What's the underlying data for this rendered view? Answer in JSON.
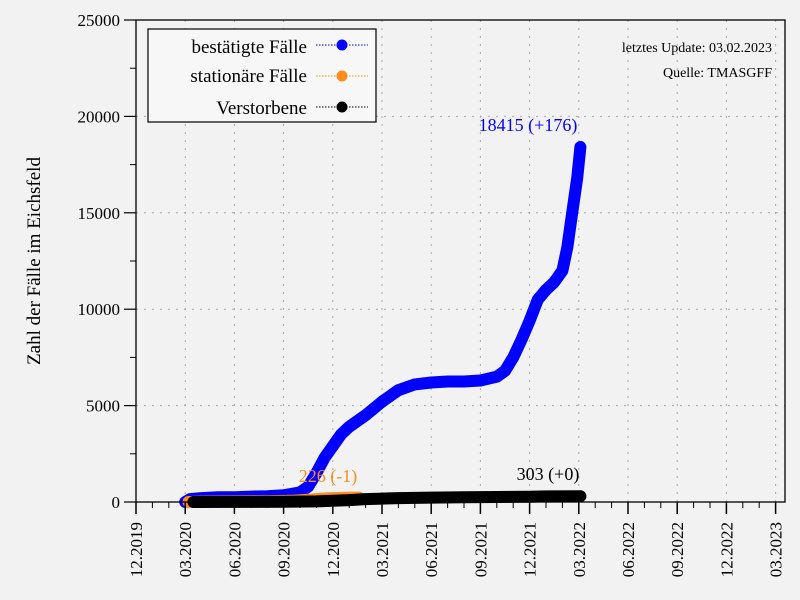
{
  "chart_data": {
    "type": "line",
    "title": "",
    "xlabel": "",
    "ylabel": "Zahl der Fälle im Eichsfeld",
    "ylim": [
      0,
      25000
    ],
    "yticks": [
      "0",
      "5000",
      "10000",
      "15000",
      "20000",
      "25000"
    ],
    "xticks": [
      "12.2019",
      "03.2020",
      "06.2020",
      "09.2020",
      "12.2020",
      "03.2021",
      "06.2021",
      "09.2021",
      "12.2021",
      "03.2022",
      "06.2022",
      "09.2022",
      "12.2022",
      "03.2023"
    ],
    "grid": true,
    "legend_position": "upper left",
    "notes": [
      "letztes Update: 03.02.2023",
      "Quelle: TMASGFF"
    ],
    "x_unit": "months since 12.2019",
    "series": [
      {
        "name": "bestätigte Fälle",
        "color": "#0000ff",
        "end_label": "18415 (+176)",
        "points": [
          [
            3.0,
            0
          ],
          [
            3.3,
            150
          ],
          [
            4,
            200
          ],
          [
            5,
            250
          ],
          [
            6,
            250
          ],
          [
            7,
            280
          ],
          [
            8,
            300
          ],
          [
            9,
            350
          ],
          [
            10,
            500
          ],
          [
            10.5,
            800
          ],
          [
            11,
            1500
          ],
          [
            11.5,
            2300
          ],
          [
            12,
            2900
          ],
          [
            12.5,
            3500
          ],
          [
            13,
            3900
          ],
          [
            14,
            4500
          ],
          [
            15,
            5200
          ],
          [
            16,
            5800
          ],
          [
            17,
            6100
          ],
          [
            18,
            6200
          ],
          [
            19,
            6250
          ],
          [
            20,
            6250
          ],
          [
            21,
            6300
          ],
          [
            22,
            6500
          ],
          [
            22.5,
            6800
          ],
          [
            23,
            7500
          ],
          [
            23.5,
            8400
          ],
          [
            24,
            9400
          ],
          [
            24.5,
            10500
          ],
          [
            25,
            11000
          ],
          [
            25.5,
            11400
          ],
          [
            26,
            12000
          ],
          [
            26.3,
            13200
          ],
          [
            26.6,
            15000
          ],
          [
            26.9,
            16800
          ],
          [
            27.1,
            18415
          ]
        ]
      },
      {
        "name": "stationäre Fälle",
        "color": "#ff8c1a",
        "end_label": "226 (-1)",
        "points": [
          [
            3.2,
            0
          ],
          [
            4,
            20
          ],
          [
            6,
            30
          ],
          [
            8,
            40
          ],
          [
            9.5,
            60
          ],
          [
            10.5,
            120
          ],
          [
            11.5,
            180
          ],
          [
            13,
            226
          ],
          [
            13.6,
            226
          ]
        ]
      },
      {
        "name": "Verstorbene",
        "color": "#000000",
        "end_label": "303 (+0)",
        "points": [
          [
            3.5,
            0
          ],
          [
            6,
            5
          ],
          [
            9,
            10
          ],
          [
            11,
            30
          ],
          [
            12,
            60
          ],
          [
            13,
            100
          ],
          [
            14,
            150
          ],
          [
            16,
            200
          ],
          [
            18,
            230
          ],
          [
            20,
            250
          ],
          [
            22,
            260
          ],
          [
            24,
            270
          ],
          [
            25,
            290
          ],
          [
            27.1,
            303
          ]
        ]
      }
    ]
  },
  "legend": {
    "items": [
      {
        "label": "bestätigte Fälle",
        "color": "#0000ff"
      },
      {
        "label": "stationäre Fälle",
        "color": "#ff8c1a"
      },
      {
        "label": "Verstorbene",
        "color": "#000000"
      }
    ]
  },
  "annotations": {
    "update": "letztes Update: 03.02.2023",
    "source": "Quelle: TMASGFF",
    "confirmed_label": "18415 (+176)",
    "hospital_label": "226 (-1)",
    "deaths_label": "303 (+0)"
  }
}
